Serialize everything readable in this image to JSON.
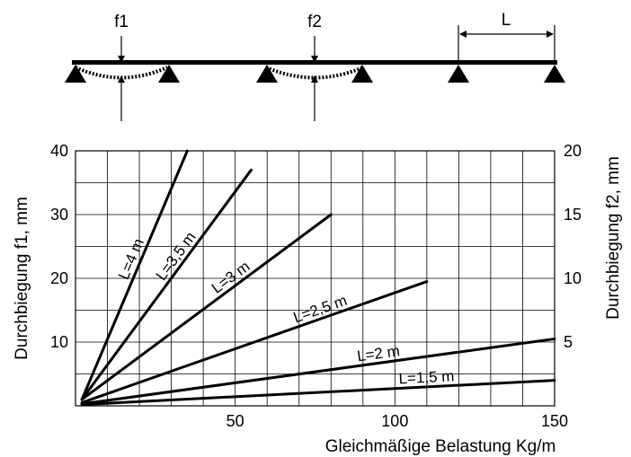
{
  "diagram": {
    "f1_label": "f1",
    "f2_label": "f2",
    "span_label": "L"
  },
  "chart_data": {
    "type": "line",
    "title": "",
    "xlabel": "Gleichmäßige Belastung Kg/m",
    "ylabel_left": "Durchbiegung f1, mm",
    "ylabel_right": "Durchbiegung f2, mm",
    "xlim": [
      0,
      150
    ],
    "ylim_left": [
      0,
      40
    ],
    "ylim_right": [
      0,
      20
    ],
    "x_ticks": [
      50,
      100,
      150
    ],
    "y_ticks_left": [
      10,
      20,
      30,
      40
    ],
    "y_ticks_right": [
      5,
      10,
      15,
      20
    ],
    "grid": true,
    "series": [
      {
        "name": "L=4 m",
        "x": [
          2,
          35
        ],
        "y": [
          1,
          40
        ]
      },
      {
        "name": "L=3,5 m",
        "x": [
          2,
          55
        ],
        "y": [
          1,
          37
        ]
      },
      {
        "name": "L=3 m",
        "x": [
          2,
          80
        ],
        "y": [
          1,
          30
        ]
      },
      {
        "name": "L=2,5 m",
        "x": [
          2,
          110
        ],
        "y": [
          0.5,
          19.5
        ]
      },
      {
        "name": "L=2 m",
        "x": [
          2,
          150
        ],
        "y": [
          0.3,
          10.5
        ]
      },
      {
        "name": "L=1,5 m",
        "x": [
          2,
          150
        ],
        "y": [
          0.2,
          4
        ]
      }
    ]
  }
}
